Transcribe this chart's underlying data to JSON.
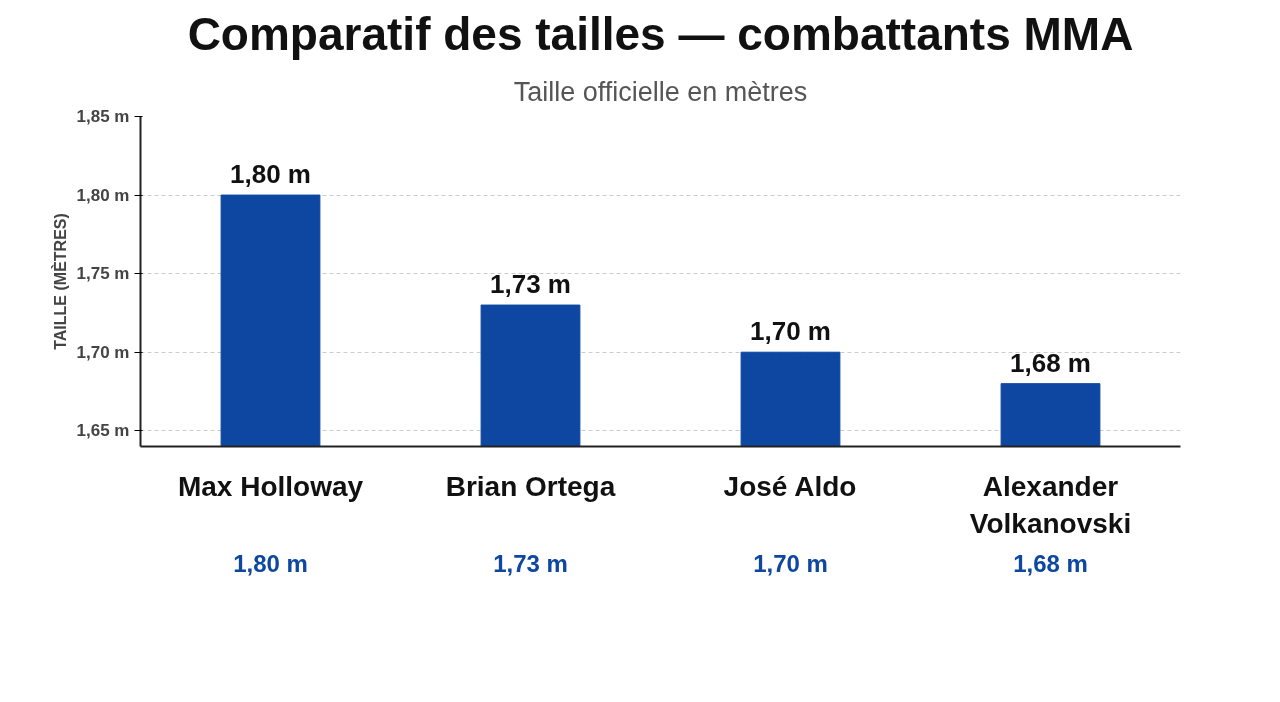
{
  "chart_data": {
    "type": "bar",
    "title": "Comparatif des tailles — combattants MMA",
    "subtitle": "Taille officielle en mètres",
    "ylabel": "TAILLE (MÈTRES)",
    "categories": [
      "Max Holloway",
      "Brian Ortega",
      "José Aldo",
      "Alexander Volkanovski"
    ],
    "values": [
      1.8,
      1.73,
      1.7,
      1.68
    ],
    "color": "#0d47a1",
    "value_labels": [
      "1,80 m",
      "1,73 m",
      "1,70 m",
      "1,68 m"
    ],
    "ylim": [
      1.64,
      1.85
    ],
    "yticks": [
      {
        "value": 1.65,
        "label": "1,65 m"
      },
      {
        "value": 1.7,
        "label": "1,70 m"
      },
      {
        "value": 1.75,
        "label": "1,75 m"
      },
      {
        "value": 1.8,
        "label": "1,80 m"
      },
      {
        "value": 1.85,
        "label": "1,85 m"
      }
    ],
    "grid": "y"
  }
}
